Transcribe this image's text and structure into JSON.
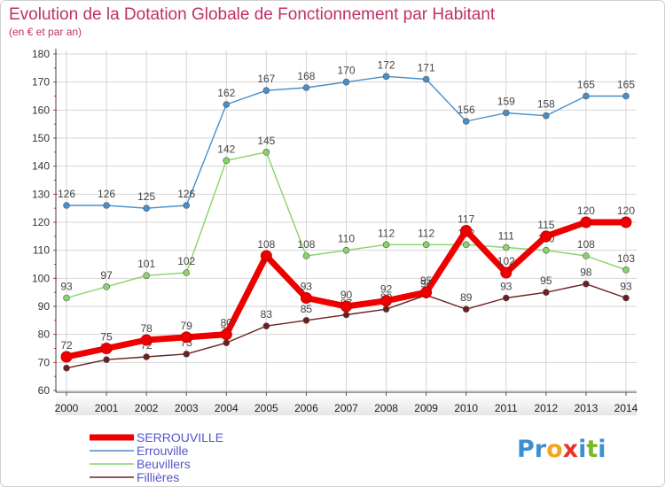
{
  "chart_data": {
    "type": "line",
    "title": "Evolution de la Dotation Globale de Fonctionnement par Habitant",
    "subtitle": "(en € et par an)",
    "x": [
      "2000",
      "2001",
      "2002",
      "2003",
      "2004",
      "2005",
      "2006",
      "2007",
      "2008",
      "2009",
      "2010",
      "2011",
      "2012",
      "2013",
      "2014"
    ],
    "ylim": [
      60,
      180
    ],
    "yticks": [
      "60",
      "70",
      "80",
      "90",
      "100",
      "110",
      "120",
      "130",
      "140",
      "150",
      "160",
      "170",
      "180"
    ],
    "grid": true,
    "legend_position": "bottom-left",
    "series": [
      {
        "name": "SERROUVILLE",
        "color": "#ee0000",
        "values": [
          72,
          75,
          78,
          79,
          80,
          108,
          93,
          90,
          92,
          95,
          117,
          102,
          115,
          120,
          120
        ]
      },
      {
        "name": "Errouville",
        "color": "#4a8ec8",
        "values": [
          126,
          126,
          125,
          126,
          162,
          167,
          168,
          170,
          172,
          171,
          156,
          159,
          158,
          165,
          165
        ]
      },
      {
        "name": "Beuvillers",
        "color": "#88d46a",
        "values": [
          93,
          97,
          101,
          102,
          142,
          145,
          108,
          110,
          112,
          112,
          112,
          111,
          110,
          108,
          103
        ]
      },
      {
        "name": "Fillières",
        "color": "#6b2020",
        "values": [
          68,
          71,
          72,
          73,
          77,
          83,
          85,
          87,
          89,
          94,
          89,
          93,
          95,
          98,
          93
        ]
      }
    ]
  },
  "logo": {
    "text": "Proxiti"
  }
}
